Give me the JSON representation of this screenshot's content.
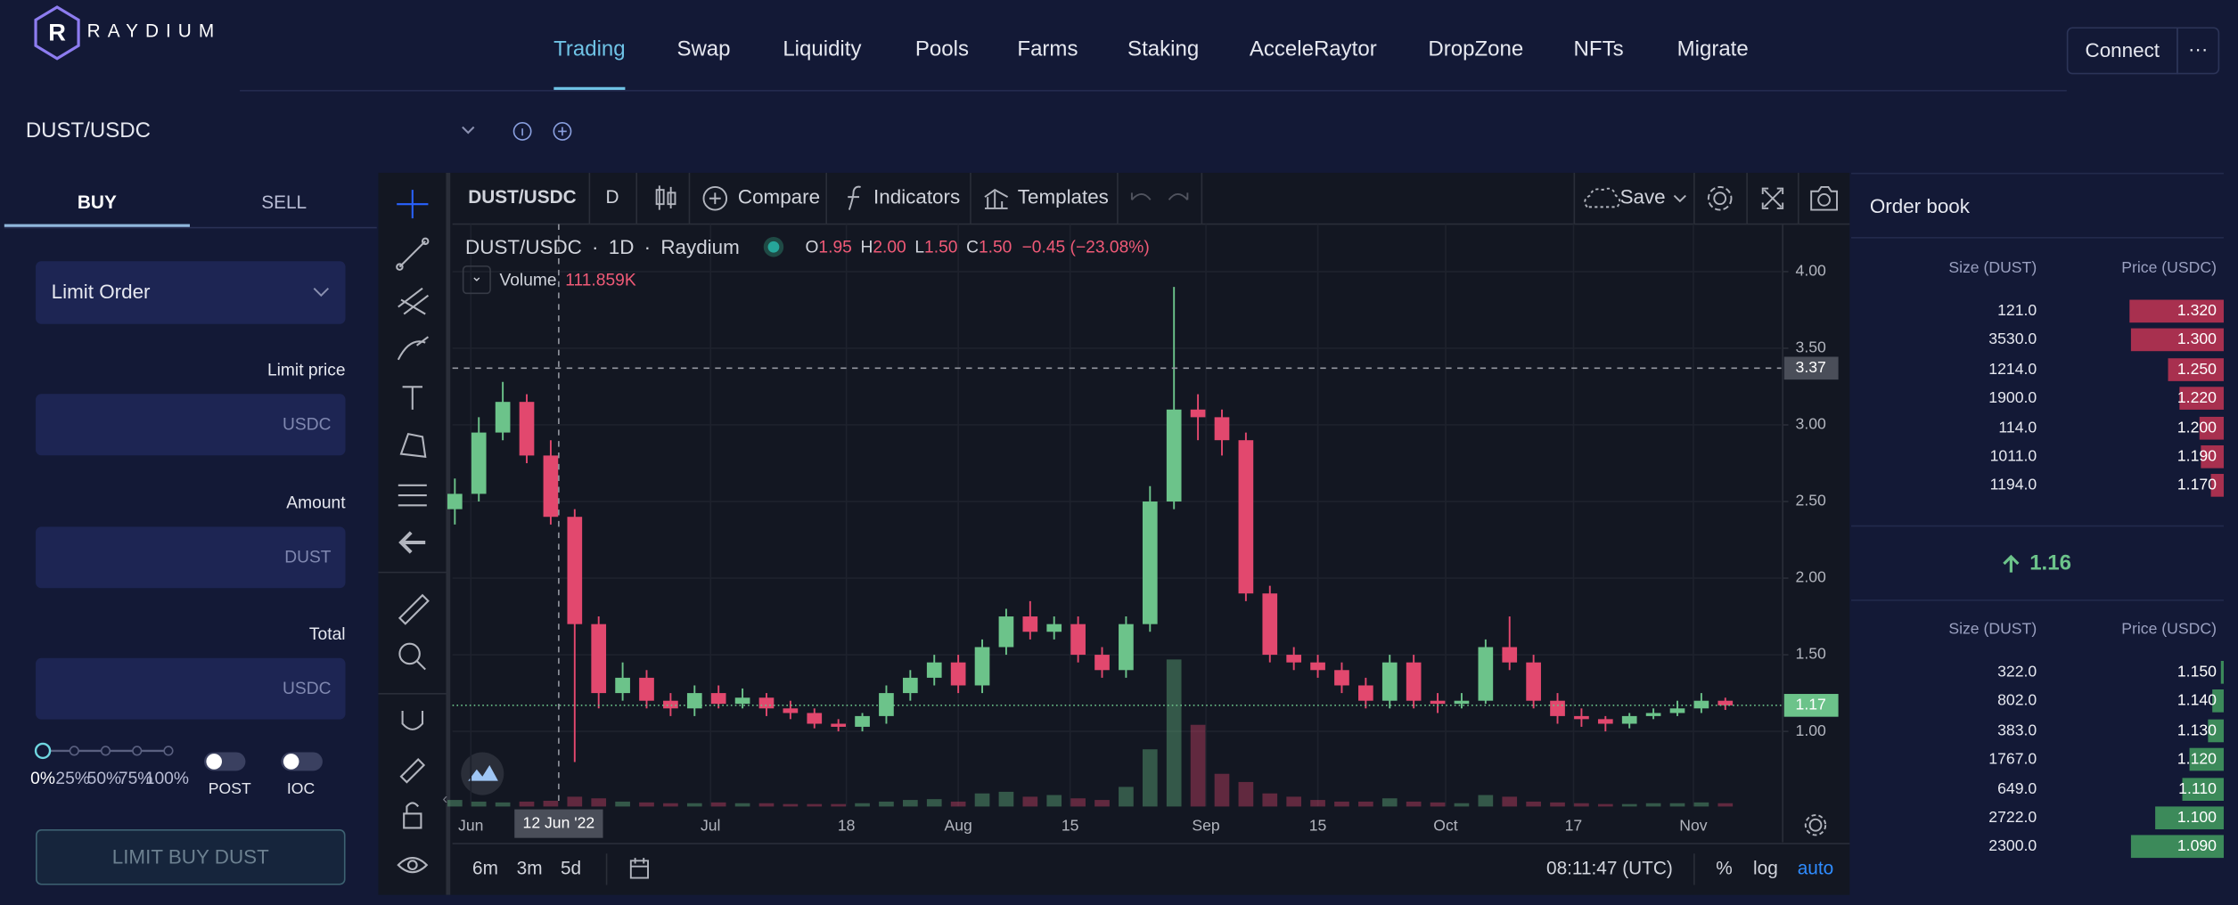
{
  "header": {
    "logo": "RAYDIUM",
    "nav": [
      "Trading",
      "Swap",
      "Liquidity",
      "Pools",
      "Farms",
      "Staking",
      "AcceleRaytor",
      "DropZone",
      "NFTs",
      "Migrate"
    ],
    "connect": "Connect",
    "more": "···"
  },
  "market": {
    "pair": "DUST/USDC"
  },
  "order_form": {
    "tabs": [
      "BUY",
      "SELL"
    ],
    "order_type": "Limit Order",
    "fields": [
      {
        "label": "Limit price",
        "unit": "USDC"
      },
      {
        "label": "Amount",
        "unit": "DUST"
      },
      {
        "label": "Total",
        "unit": "USDC"
      }
    ],
    "percent_steps": [
      "0%",
      "25%",
      "50%",
      "75%",
      "100%"
    ],
    "toggles": [
      "POST",
      "IOC"
    ],
    "submit": "LIMIT BUY DUST"
  },
  "chart": {
    "type": "candlestick",
    "toolbar": {
      "symbol": "DUST/USDC",
      "interval": "D",
      "compare": "Compare",
      "indicators": "Indicators",
      "templates": "Templates",
      "save": "Save"
    },
    "legend": {
      "symbol": "DUST/USDC",
      "interval": "1D",
      "exchange": "Raydium",
      "ohlc": [
        {
          "key": "O",
          "value": "1.95"
        },
        {
          "key": "H",
          "value": "2.00"
        },
        {
          "key": "L",
          "value": "1.50"
        },
        {
          "key": "C",
          "value": "1.50"
        }
      ],
      "change": "−0.45 (−23.08%)",
      "volume_label": "Volume",
      "volume_value": "111.859K"
    },
    "candles": {
      "x": [
        -2,
        1,
        4,
        7,
        10,
        13,
        16,
        19,
        22,
        25,
        28,
        31,
        34,
        37,
        40,
        43,
        46,
        49,
        52,
        55,
        58,
        61,
        64,
        67,
        70,
        73,
        76,
        79,
        82,
        85,
        88,
        91,
        94,
        97,
        100,
        103,
        106,
        109,
        112,
        115,
        118,
        121,
        124,
        127,
        130,
        133,
        136,
        139,
        142,
        145,
        148,
        151,
        154,
        157
      ],
      "open": [
        2.45,
        2.55,
        2.95,
        3.15,
        2.8,
        2.4,
        1.7,
        1.25,
        1.35,
        1.2,
        1.15,
        1.25,
        1.18,
        1.22,
        1.15,
        1.12,
        1.05,
        1.03,
        1.1,
        1.25,
        1.35,
        1.45,
        1.3,
        1.55,
        1.75,
        1.65,
        1.7,
        1.5,
        1.4,
        1.7,
        2.5,
        3.1,
        3.05,
        2.9,
        1.9,
        1.5,
        1.45,
        1.4,
        1.3,
        1.2,
        1.45,
        1.2,
        1.18,
        1.2,
        1.55,
        1.45,
        1.2,
        1.1,
        1.08,
        1.05,
        1.1,
        1.12,
        1.15,
        1.2
      ],
      "high": [
        2.65,
        3.05,
        3.28,
        3.2,
        2.9,
        2.45,
        1.75,
        1.45,
        1.4,
        1.25,
        1.3,
        1.3,
        1.28,
        1.25,
        1.2,
        1.15,
        1.08,
        1.12,
        1.3,
        1.4,
        1.5,
        1.5,
        1.6,
        1.8,
        1.85,
        1.75,
        1.75,
        1.55,
        1.75,
        2.6,
        3.9,
        3.2,
        3.1,
        2.95,
        1.95,
        1.55,
        1.5,
        1.45,
        1.35,
        1.5,
        1.5,
        1.25,
        1.25,
        1.6,
        1.75,
        1.5,
        1.25,
        1.15,
        1.1,
        1.12,
        1.15,
        1.2,
        1.25,
        1.22
      ],
      "low": [
        2.35,
        2.5,
        2.9,
        2.75,
        2.35,
        0.8,
        1.15,
        1.2,
        1.15,
        1.1,
        1.1,
        1.15,
        1.15,
        1.1,
        1.08,
        1.02,
        1.0,
        1.0,
        1.05,
        1.2,
        1.3,
        1.25,
        1.25,
        1.5,
        1.6,
        1.6,
        1.45,
        1.35,
        1.35,
        1.65,
        2.45,
        2.9,
        2.8,
        1.85,
        1.45,
        1.4,
        1.35,
        1.25,
        1.15,
        1.15,
        1.15,
        1.12,
        1.15,
        1.18,
        1.4,
        1.15,
        1.05,
        1.03,
        1.0,
        1.02,
        1.08,
        1.1,
        1.12,
        1.14
      ],
      "close": [
        2.55,
        2.95,
        3.15,
        2.8,
        2.4,
        1.7,
        1.25,
        1.35,
        1.2,
        1.15,
        1.25,
        1.18,
        1.22,
        1.15,
        1.12,
        1.05,
        1.03,
        1.1,
        1.25,
        1.35,
        1.45,
        1.3,
        1.55,
        1.75,
        1.65,
        1.7,
        1.5,
        1.4,
        1.7,
        2.5,
        3.1,
        3.05,
        2.9,
        1.9,
        1.5,
        1.45,
        1.4,
        1.3,
        1.2,
        1.45,
        1.2,
        1.18,
        1.2,
        1.55,
        1.45,
        1.2,
        1.1,
        1.08,
        1.05,
        1.1,
        1.12,
        1.15,
        1.2,
        1.17
      ],
      "volume": [
        40,
        30,
        25,
        30,
        35,
        60,
        50,
        30,
        25,
        20,
        20,
        25,
        20,
        20,
        15,
        15,
        15,
        20,
        30,
        40,
        45,
        30,
        80,
        90,
        60,
        70,
        50,
        40,
        120,
        350,
        900,
        500,
        200,
        150,
        80,
        60,
        40,
        30,
        30,
        50,
        30,
        25,
        20,
        70,
        60,
        30,
        25,
        20,
        15,
        15,
        20,
        20,
        25,
        20
      ],
      "up_color": "#6cc38a",
      "down_color": "#e2486e"
    },
    "ylim": [
      0.51,
      4.31
    ],
    "yticks": [
      {
        "value": 4,
        "label": "4.00"
      },
      {
        "value": 3.5,
        "label": "3.50"
      },
      {
        "value": 3,
        "label": "3.00"
      },
      {
        "value": 2.5,
        "label": "2.50"
      },
      {
        "value": 2,
        "label": "2.00"
      },
      {
        "value": 1.5,
        "label": "1.50"
      },
      {
        "value": 1,
        "label": "1.00"
      }
    ],
    "xlim": [
      -2.3,
      164
    ],
    "xticks": [
      {
        "value": 0,
        "label": "Jun"
      },
      {
        "value": 30,
        "label": "Jul"
      },
      {
        "value": 47,
        "label": "18"
      },
      {
        "value": 61,
        "label": "Aug"
      },
      {
        "value": 75,
        "label": "15"
      },
      {
        "value": 92,
        "label": "Sep"
      },
      {
        "value": 106,
        "label": "15"
      },
      {
        "value": 122,
        "label": "Oct"
      },
      {
        "value": 138,
        "label": "17"
      },
      {
        "value": 153,
        "label": "Nov"
      }
    ],
    "grid": true,
    "crosshair": {
      "x": {
        "value": 11,
        "label": "12 Jun '22"
      },
      "y": {
        "value": 3.37,
        "label": "3.37"
      }
    },
    "last_price": {
      "value": 1.17,
      "label": "1.17"
    },
    "ranges": [
      "6m",
      "3m",
      "5d"
    ],
    "clock": "08:11:47 (UTC)",
    "scale_modes": [
      "%",
      "log",
      "auto"
    ]
  },
  "order_book": {
    "title": "Order book",
    "columns": [
      "Size (DUST)",
      "Price (USDC)"
    ],
    "asks": [
      {
        "size": {
          "value": 121,
          "label": "121.0"
        },
        "price": "1.320"
      },
      {
        "size": {
          "value": 3530,
          "label": "3530.0"
        },
        "price": "1.300"
      },
      {
        "size": {
          "value": 1214,
          "label": "1214.0"
        },
        "price": "1.250"
      },
      {
        "size": {
          "value": 1900,
          "label": "1900.0"
        },
        "price": "1.220"
      },
      {
        "size": {
          "value": 114,
          "label": "114.0"
        },
        "price": "1.200"
      },
      {
        "size": {
          "value": 1011,
          "label": "1011.0"
        },
        "price": "1.190"
      },
      {
        "size": {
          "value": 1194,
          "label": "1194.0"
        },
        "price": "1.170"
      }
    ],
    "mid_price": "1.16",
    "bids": [
      {
        "size": {
          "value": 322,
          "label": "322.0"
        },
        "price": "1.150"
      },
      {
        "size": {
          "value": 802,
          "label": "802.0"
        },
        "price": "1.140"
      },
      {
        "size": {
          "value": 383,
          "label": "383.0"
        },
        "price": "1.130"
      },
      {
        "size": {
          "value": 1767,
          "label": "1767.0"
        },
        "price": "1.120"
      },
      {
        "size": {
          "value": 649,
          "label": "649.0"
        },
        "price": "1.110"
      },
      {
        "size": {
          "value": 2722,
          "label": "2722.0"
        },
        "price": "1.100"
      },
      {
        "size": {
          "value": 2300,
          "label": "2300.0"
        },
        "price": "1.090"
      }
    ]
  }
}
